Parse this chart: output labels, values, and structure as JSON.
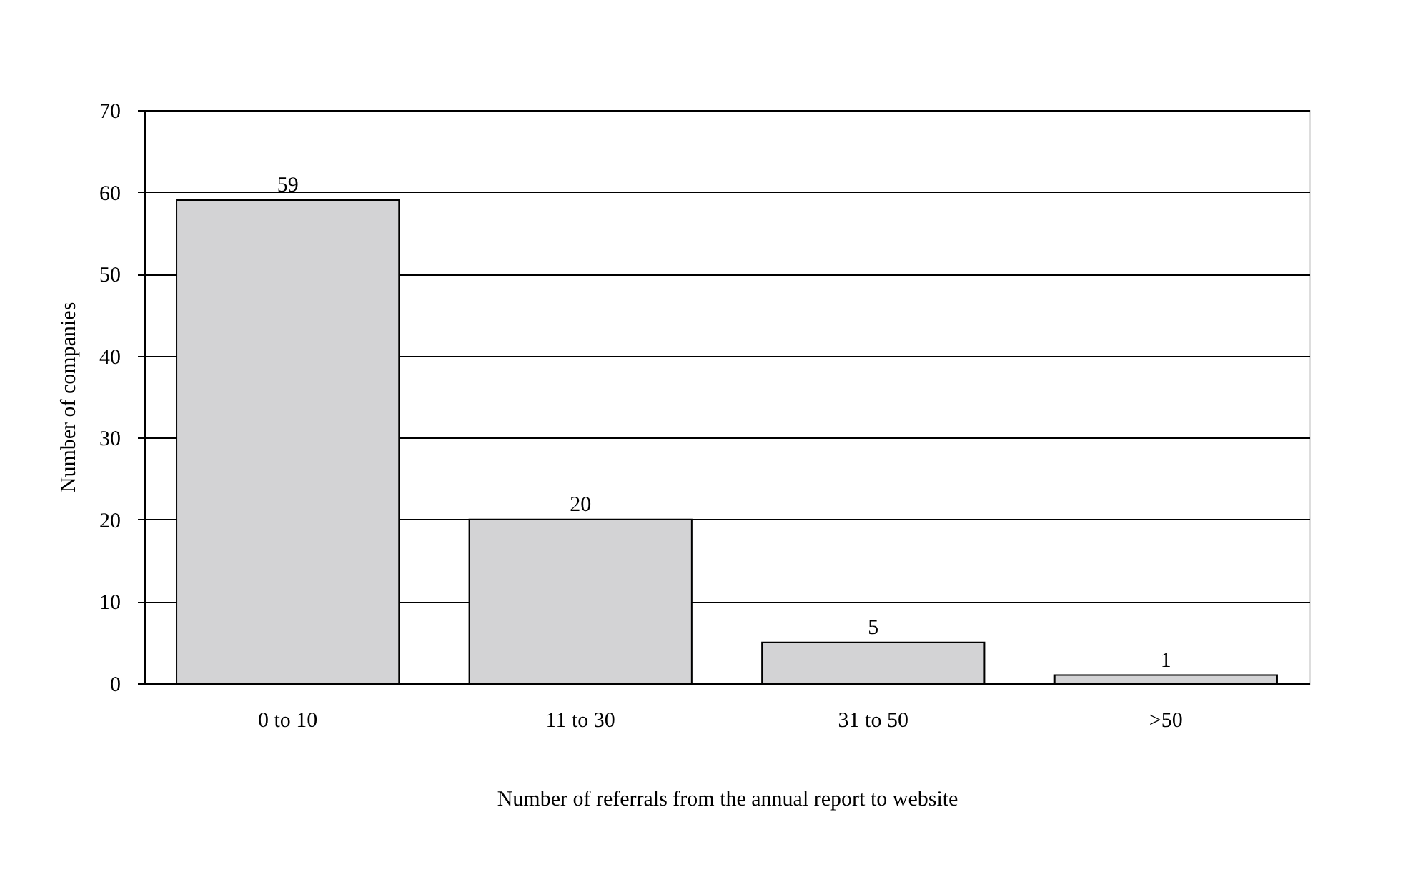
{
  "chart_data": {
    "type": "bar",
    "xlabel": "Number of referrals from the annual report to website",
    "ylabel": "Number of companies",
    "categories": [
      "0 to 10",
      "11 to 30",
      "31 to 50",
      ">50"
    ],
    "values": [
      59,
      20,
      5,
      1
    ],
    "color": "#d3d3d5",
    "ylim": [
      0,
      70
    ],
    "yticks": [
      0,
      10,
      20,
      30,
      40,
      50,
      60,
      70
    ],
    "grid": "y",
    "data_labels": true
  }
}
